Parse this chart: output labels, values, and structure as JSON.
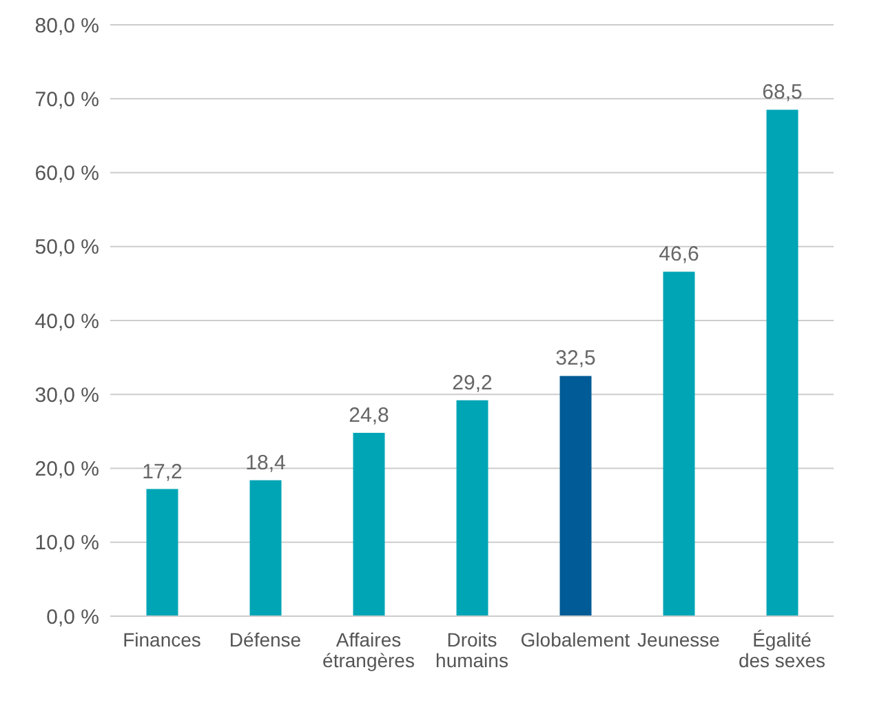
{
  "chart_data": {
    "type": "bar",
    "categories": [
      "Finances",
      "Défense",
      "Affaires étrangères",
      "Droits humains",
      "Globalement",
      "Jeunesse",
      "Égalité des sexes"
    ],
    "values": [
      17.2,
      18.4,
      24.8,
      29.2,
      32.5,
      46.6,
      68.5
    ],
    "colors": [
      "#00a5b5",
      "#00a5b5",
      "#00a5b5",
      "#00a5b5",
      "#005b96",
      "#00a5b5",
      "#00a5b5"
    ],
    "value_labels": [
      "17,2",
      "18,4",
      "24,8",
      "29,2",
      "32,5",
      "46,6",
      "68,5"
    ],
    "ylim": [
      0,
      80
    ],
    "yticks": [
      {
        "value": 0,
        "label": "0,0 %"
      },
      {
        "value": 10,
        "label": "10,0 %"
      },
      {
        "value": 20,
        "label": "20,0 %"
      },
      {
        "value": 30,
        "label": "30,0 %"
      },
      {
        "value": 40,
        "label": "40,0 %"
      },
      {
        "value": 50,
        "label": "50,0 %"
      },
      {
        "value": 60,
        "label": "60,0 %"
      },
      {
        "value": 70,
        "label": "70,0 %"
      },
      {
        "value": 80,
        "label": "80,0 %"
      }
    ],
    "grid": "y"
  }
}
